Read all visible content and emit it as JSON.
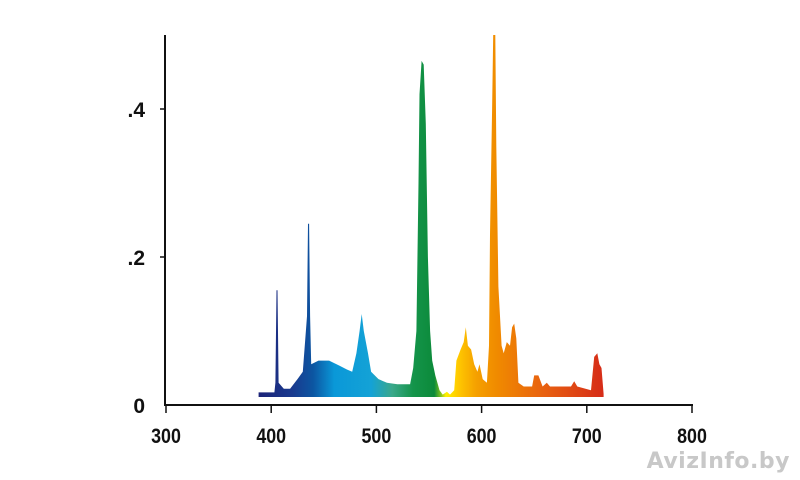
{
  "chart_data": {
    "type": "area",
    "title": "",
    "xlabel": "",
    "ylabel": "",
    "xlim": [
      300,
      800
    ],
    "ylim": [
      0,
      0.5
    ],
    "x_ticks": [
      300,
      400,
      500,
      600,
      700,
      800
    ],
    "x_tick_labels": [
      "300",
      "400",
      "500",
      "600",
      "700",
      "800"
    ],
    "y_ticks": [
      0,
      0.2,
      0.4
    ],
    "y_tick_labels": [
      "0",
      ".2",
      ".4"
    ],
    "grid": false,
    "fill": "spectral gradient (wavelength-colored)",
    "gradient_stops": [
      {
        "nm": 388,
        "color": "#1c2378"
      },
      {
        "nm": 420,
        "color": "#1a3a8e"
      },
      {
        "nm": 440,
        "color": "#0c56a2"
      },
      {
        "nm": 460,
        "color": "#0a98d8"
      },
      {
        "nm": 495,
        "color": "#14a2d6"
      },
      {
        "nm": 515,
        "color": "#3aa88a"
      },
      {
        "nm": 535,
        "color": "#14944a"
      },
      {
        "nm": 555,
        "color": "#0c8a3a"
      },
      {
        "nm": 561,
        "color": "#7cc020"
      },
      {
        "nm": 566,
        "color": "#fff000"
      },
      {
        "nm": 578,
        "color": "#ffc800"
      },
      {
        "nm": 595,
        "color": "#f5a000"
      },
      {
        "nm": 615,
        "color": "#f08a00"
      },
      {
        "nm": 660,
        "color": "#e86010"
      },
      {
        "nm": 716,
        "color": "#d62c18"
      }
    ],
    "series": [
      {
        "x": [
          388,
          403,
          404,
          405,
          406,
          407,
          412,
          418,
          425,
          430,
          434,
          435,
          436,
          437,
          438,
          445,
          455,
          465,
          472,
          477,
          481,
          484,
          486,
          488,
          492,
          495,
          502,
          510,
          520,
          532,
          535,
          538,
          540,
          541,
          543,
          545,
          547,
          549,
          551,
          553,
          556,
          560,
          563,
          567,
          570,
          574,
          576,
          580,
          583,
          585,
          587,
          590,
          593,
          596,
          598,
          601,
          605,
          607,
          608,
          610,
          611,
          613,
          614,
          616,
          619,
          621,
          624,
          627,
          629,
          631,
          633,
          635,
          640,
          648,
          650,
          654,
          658,
          662,
          665,
          685,
          688,
          691,
          704,
          707,
          710,
          712,
          714,
          716
        ],
        "y": [
          0.017,
          0.017,
          0.03,
          0.155,
          0.155,
          0.03,
          0.022,
          0.022,
          0.035,
          0.045,
          0.12,
          0.245,
          0.245,
          0.12,
          0.055,
          0.06,
          0.06,
          0.053,
          0.048,
          0.045,
          0.07,
          0.1,
          0.123,
          0.1,
          0.07,
          0.045,
          0.035,
          0.03,
          0.028,
          0.028,
          0.05,
          0.1,
          0.3,
          0.42,
          0.465,
          0.46,
          0.38,
          0.2,
          0.1,
          0.06,
          0.04,
          0.02,
          0.014,
          0.018,
          0.014,
          0.02,
          0.06,
          0.075,
          0.085,
          0.105,
          0.08,
          0.075,
          0.055,
          0.045,
          0.055,
          0.035,
          0.03,
          0.08,
          0.23,
          0.4,
          0.5,
          0.5,
          0.35,
          0.16,
          0.08,
          0.07,
          0.085,
          0.08,
          0.105,
          0.11,
          0.09,
          0.03,
          0.025,
          0.025,
          0.04,
          0.04,
          0.025,
          0.03,
          0.025,
          0.025,
          0.032,
          0.025,
          0.02,
          0.065,
          0.07,
          0.055,
          0.05,
          0.015
        ]
      }
    ]
  },
  "watermark": "AvizInfo.by"
}
